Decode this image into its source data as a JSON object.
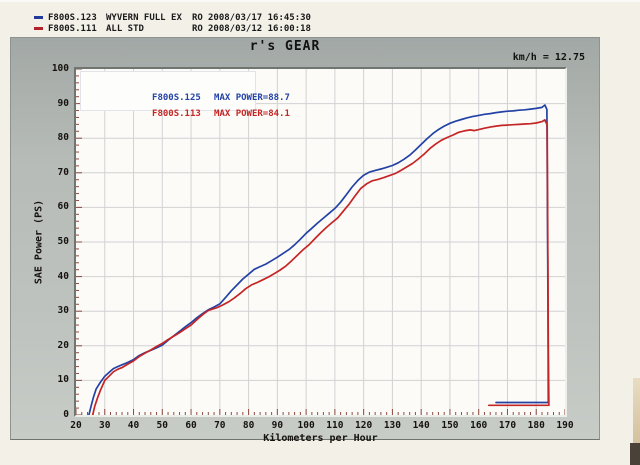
{
  "header": {
    "runs": [
      {
        "marker_color": "#22399c",
        "name": "F800S.123",
        "spec": "WYVERN FULL EX",
        "ro": "RO",
        "datetime": "2008/03/17 16:45:30"
      },
      {
        "marker_color": "#b3202a",
        "name": "F800S.111",
        "spec": "ALL STD",
        "ro": "RO",
        "datetime": "2008/03/12 16:00:18"
      }
    ]
  },
  "panel": {
    "title": "r's GEAR",
    "ratio_label": "km/h = 12.75"
  },
  "chart_data": {
    "type": "line",
    "title": "r's GEAR",
    "xlabel": "Kilometers per Hour",
    "ylabel": "SAE Power (PS)",
    "xlim": [
      20,
      190
    ],
    "ylim": [
      0,
      100
    ],
    "x_ticks": [
      20,
      30,
      40,
      50,
      60,
      70,
      80,
      90,
      100,
      110,
      120,
      130,
      140,
      150,
      160,
      170,
      180,
      190
    ],
    "y_ticks": [
      0,
      10,
      20,
      30,
      40,
      50,
      60,
      70,
      80,
      90,
      100
    ],
    "grid": true,
    "grid_color": "#d2d2d4",
    "tick_color": "#8e4a42",
    "legend_position": "top-left",
    "legend": [
      {
        "name": "F800S.125",
        "max_label": "MAX POWER=88.7",
        "color": "#2342a6"
      },
      {
        "name": "F800S.113",
        "max_label": "MAX POWER=84.1",
        "color": "#c52525"
      }
    ],
    "series": [
      {
        "name": "F800S.125",
        "color": "#2342a6",
        "max_power": 88.7,
        "points": [
          [
            24.5,
            0
          ],
          [
            25.2,
            2.5
          ],
          [
            26,
            5
          ],
          [
            27,
            7.5
          ],
          [
            28.5,
            9.5
          ],
          [
            30,
            11.2
          ],
          [
            31.5,
            12.3
          ],
          [
            33,
            13.4
          ],
          [
            34.5,
            14
          ],
          [
            36,
            14.5
          ],
          [
            38,
            15.2
          ],
          [
            40,
            16
          ],
          [
            42,
            17.2
          ],
          [
            44,
            18
          ],
          [
            46,
            18.7
          ],
          [
            48,
            19.4
          ],
          [
            50,
            20.2
          ],
          [
            52,
            21.6
          ],
          [
            54,
            22.9
          ],
          [
            56,
            24.2
          ],
          [
            58,
            25.5
          ],
          [
            60,
            26.7
          ],
          [
            62,
            28.1
          ],
          [
            64,
            29.3
          ],
          [
            66,
            30.4
          ],
          [
            68,
            31.2
          ],
          [
            70,
            32.1
          ],
          [
            72,
            34
          ],
          [
            74,
            35.9
          ],
          [
            76,
            37.6
          ],
          [
            78,
            39.3
          ],
          [
            80,
            40.7
          ],
          [
            82,
            42.1
          ],
          [
            84,
            42.9
          ],
          [
            86,
            43.6
          ],
          [
            88,
            44.6
          ],
          [
            90,
            45.6
          ],
          [
            92,
            46.7
          ],
          [
            94,
            47.8
          ],
          [
            96,
            49.2
          ],
          [
            98,
            50.8
          ],
          [
            100,
            52.5
          ],
          [
            102,
            54
          ],
          [
            104,
            55.5
          ],
          [
            106,
            56.9
          ],
          [
            108,
            58.3
          ],
          [
            110,
            59.7
          ],
          [
            112,
            61.5
          ],
          [
            114,
            63.7
          ],
          [
            116,
            65.9
          ],
          [
            118,
            67.8
          ],
          [
            120,
            69.3
          ],
          [
            122,
            70.2
          ],
          [
            124,
            70.7
          ],
          [
            126,
            71.1
          ],
          [
            128,
            71.6
          ],
          [
            130,
            72.1
          ],
          [
            132,
            72.9
          ],
          [
            134,
            73.9
          ],
          [
            136,
            75.1
          ],
          [
            138,
            76.6
          ],
          [
            140,
            78.2
          ],
          [
            142,
            79.8
          ],
          [
            144,
            81.3
          ],
          [
            146,
            82.5
          ],
          [
            148,
            83.5
          ],
          [
            150,
            84.3
          ],
          [
            152,
            84.9
          ],
          [
            154,
            85.4
          ],
          [
            156,
            85.9
          ],
          [
            158,
            86.3
          ],
          [
            160,
            86.6
          ],
          [
            162,
            86.9
          ],
          [
            164,
            87.1
          ],
          [
            166,
            87.4
          ],
          [
            168,
            87.6
          ],
          [
            170,
            87.8
          ],
          [
            172,
            87.9
          ],
          [
            174,
            88.1
          ],
          [
            176,
            88.2
          ],
          [
            178,
            88.4
          ],
          [
            180,
            88.6
          ],
          [
            182,
            88.9
          ],
          [
            183,
            89.6
          ],
          [
            183.7,
            88.3
          ],
          [
            184.1,
            30
          ],
          [
            184.2,
            3.6
          ],
          [
            166,
            3.6
          ]
        ]
      },
      {
        "name": "F800S.113",
        "color": "#c52525",
        "max_power": 84.1,
        "points": [
          [
            25.8,
            0
          ],
          [
            26.5,
            2.5
          ],
          [
            27.5,
            5
          ],
          [
            28.5,
            7.2
          ],
          [
            30,
            10
          ],
          [
            31.5,
            11.2
          ],
          [
            33,
            12.5
          ],
          [
            34.5,
            13.2
          ],
          [
            36,
            13.7
          ],
          [
            38,
            14.7
          ],
          [
            40,
            15.6
          ],
          [
            42,
            16.9
          ],
          [
            44,
            17.9
          ],
          [
            46,
            18.8
          ],
          [
            48,
            19.8
          ],
          [
            50,
            20.7
          ],
          [
            52,
            21.8
          ],
          [
            54,
            22.8
          ],
          [
            56,
            23.8
          ],
          [
            58,
            24.9
          ],
          [
            60,
            26
          ],
          [
            62,
            27.5
          ],
          [
            64,
            29
          ],
          [
            66,
            30.2
          ],
          [
            67.5,
            30.6
          ],
          [
            69,
            31
          ],
          [
            71,
            31.8
          ],
          [
            73,
            32.7
          ],
          [
            75,
            33.8
          ],
          [
            77,
            35.1
          ],
          [
            79,
            36.5
          ],
          [
            81,
            37.6
          ],
          [
            83,
            38.3
          ],
          [
            85,
            39.1
          ],
          [
            87,
            39.9
          ],
          [
            89,
            40.9
          ],
          [
            91,
            41.9
          ],
          [
            93,
            43.1
          ],
          [
            95,
            44.6
          ],
          [
            97,
            46.2
          ],
          [
            99,
            47.8
          ],
          [
            101,
            49.2
          ],
          [
            103,
            50.9
          ],
          [
            105,
            52.6
          ],
          [
            107,
            54.2
          ],
          [
            109,
            55.6
          ],
          [
            111,
            57
          ],
          [
            113,
            59
          ],
          [
            115,
            61
          ],
          [
            117,
            63.3
          ],
          [
            119,
            65.5
          ],
          [
            121,
            66.8
          ],
          [
            123,
            67.7
          ],
          [
            125,
            68.1
          ],
          [
            127,
            68.6
          ],
          [
            129,
            69.2
          ],
          [
            131,
            69.8
          ],
          [
            133,
            70.7
          ],
          [
            135,
            71.7
          ],
          [
            137,
            72.7
          ],
          [
            139,
            74
          ],
          [
            141,
            75.4
          ],
          [
            143,
            77
          ],
          [
            145,
            78.3
          ],
          [
            147,
            79.4
          ],
          [
            149,
            80.2
          ],
          [
            151,
            80.9
          ],
          [
            153,
            81.7
          ],
          [
            155,
            82.1
          ],
          [
            157,
            82.4
          ],
          [
            158.5,
            82.2
          ],
          [
            160,
            82.5
          ],
          [
            162,
            82.9
          ],
          [
            164,
            83.2
          ],
          [
            166,
            83.5
          ],
          [
            168,
            83.7
          ],
          [
            170,
            83.8
          ],
          [
            172,
            83.9
          ],
          [
            174,
            84
          ],
          [
            176,
            84.1
          ],
          [
            178,
            84.2
          ],
          [
            180,
            84.4
          ],
          [
            182,
            84.8
          ],
          [
            183,
            85.3
          ],
          [
            183.8,
            83.8
          ],
          [
            184.2,
            20
          ],
          [
            184.4,
            2.8
          ],
          [
            163.5,
            2.8
          ]
        ]
      }
    ]
  }
}
